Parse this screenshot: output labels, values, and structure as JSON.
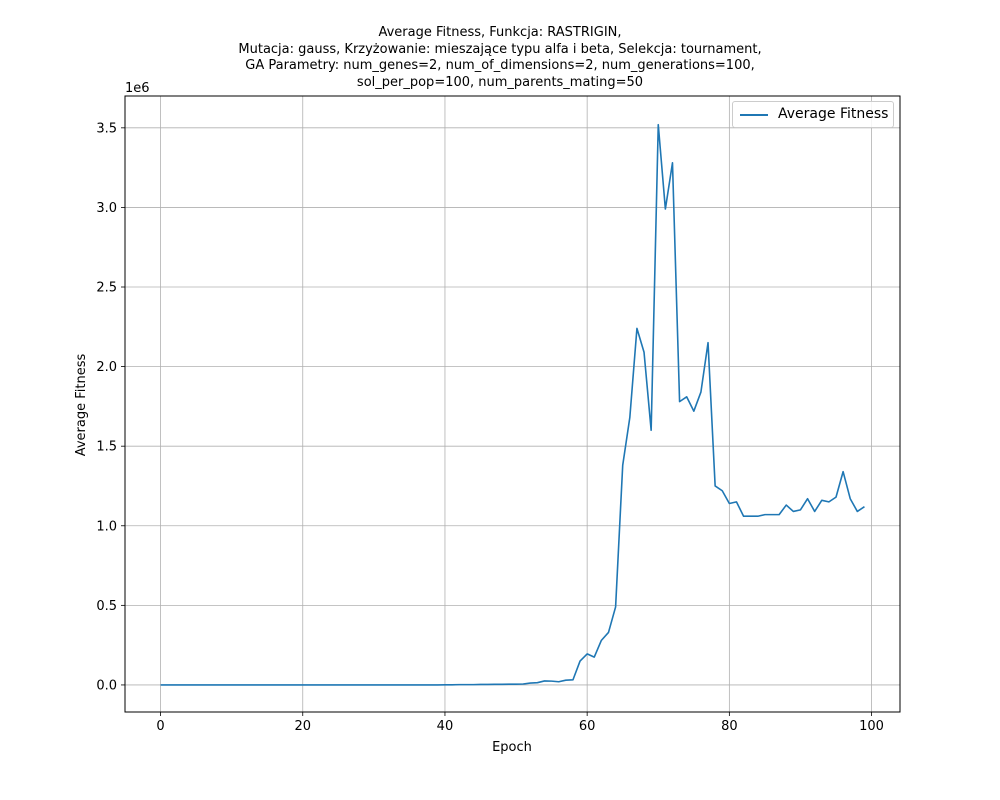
{
  "chart_data": {
    "type": "line",
    "title_lines": [
      "Average Fitness, Funkcja: RASTRIGIN,",
      "Mutacja: gauss, Krzyżowanie: mieszające typu alfa i beta, Selekcja: tournament,",
      "GA Parametry: num_genes=2, num_of_dimensions=2, num_generations=100,",
      "sol_per_pop=100, num_parents_mating=50"
    ],
    "xlabel": "Epoch",
    "ylabel": "Average Fitness",
    "y_multiplier": "1e6",
    "xlim": [
      -5,
      104
    ],
    "ylim": [
      -170000,
      3700000
    ],
    "x_ticks": [
      0,
      20,
      40,
      60,
      80,
      100
    ],
    "x_tick_labels": [
      "0",
      "20",
      "40",
      "60",
      "80",
      "100"
    ],
    "y_ticks": [
      0,
      500000,
      1000000,
      1500000,
      2000000,
      2500000,
      3000000,
      3500000
    ],
    "y_tick_labels": [
      "0.0",
      "0.5",
      "1.0",
      "1.5",
      "2.0",
      "2.5",
      "3.0",
      "3.5"
    ],
    "grid": true,
    "legend_position": "upper right",
    "series": [
      {
        "name": "Average Fitness",
        "color": "#1f77b4",
        "x": [
          0,
          1,
          2,
          3,
          4,
          5,
          6,
          7,
          8,
          9,
          10,
          11,
          12,
          13,
          14,
          15,
          16,
          17,
          18,
          19,
          20,
          21,
          22,
          23,
          24,
          25,
          26,
          27,
          28,
          29,
          30,
          31,
          32,
          33,
          34,
          35,
          36,
          37,
          38,
          39,
          40,
          41,
          42,
          43,
          44,
          45,
          46,
          47,
          48,
          49,
          50,
          51,
          52,
          53,
          54,
          55,
          56,
          57,
          58,
          59,
          60,
          61,
          62,
          63,
          64,
          65,
          66,
          67,
          68,
          69,
          70,
          71,
          72,
          73,
          74,
          75,
          76,
          77,
          78,
          79,
          80,
          81,
          82,
          83,
          84,
          85,
          86,
          87,
          88,
          89,
          90,
          91,
          92,
          93,
          94,
          95,
          96,
          97,
          98,
          99
        ],
        "y": [
          0,
          0,
          0,
          0,
          0,
          0,
          0,
          0,
          0,
          0,
          0,
          0,
          0,
          0,
          0,
          0,
          0,
          0,
          0,
          0,
          0,
          0,
          0,
          0,
          0,
          0,
          0,
          0,
          0,
          0,
          0,
          0,
          0,
          0,
          0,
          0,
          0,
          0,
          0,
          0,
          1000,
          1000,
          2000,
          2000,
          2000,
          3000,
          3000,
          4000,
          4000,
          5000,
          5000,
          6000,
          12000,
          14000,
          25000,
          24000,
          20000,
          30000,
          32000,
          150000,
          195000,
          175000,
          280000,
          330000,
          490000,
          1380000,
          1680000,
          2240000,
          2090000,
          1600000,
          3520000,
          2990000,
          3280000,
          1780000,
          1810000,
          1720000,
          1840000,
          2150000,
          1250000,
          1220000,
          1140000,
          1150000,
          1060000,
          1060000,
          1060000,
          1070000,
          1070000,
          1070000,
          1130000,
          1090000,
          1100000,
          1170000,
          1090000,
          1160000,
          1150000,
          1180000,
          1340000,
          1170000,
          1090000,
          1120000
        ]
      }
    ]
  }
}
